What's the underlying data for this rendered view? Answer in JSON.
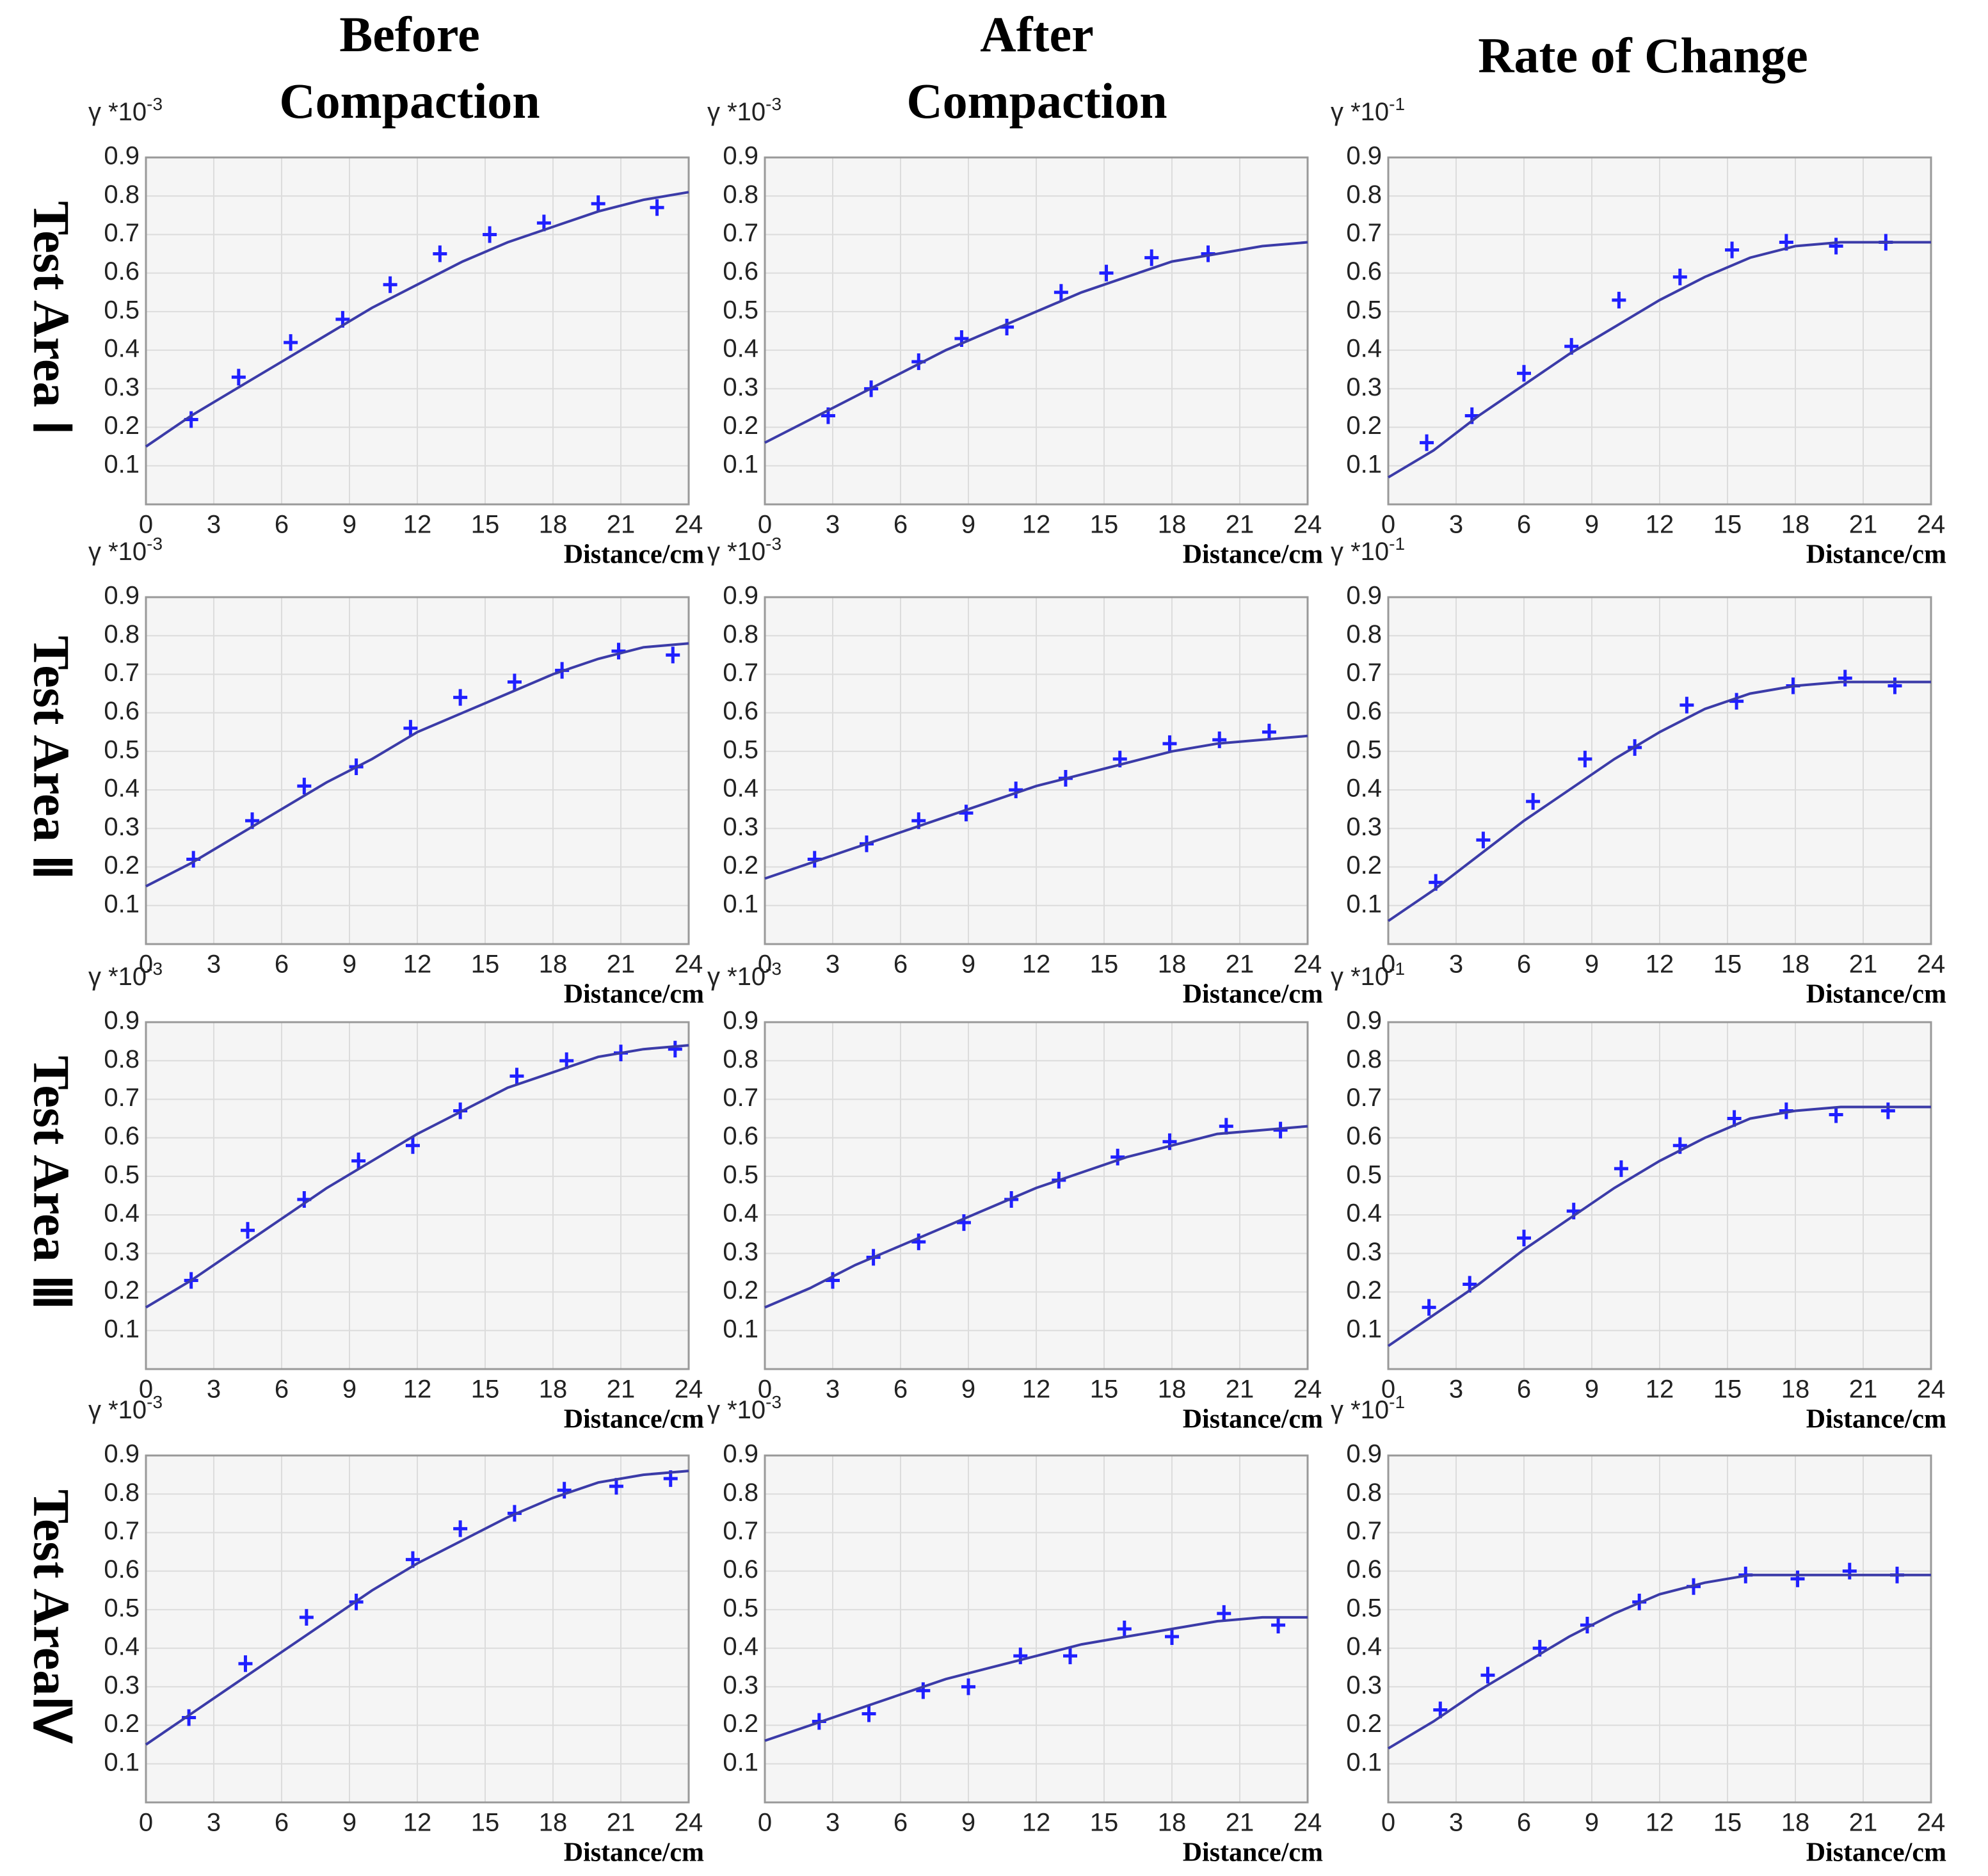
{
  "column_titles": [
    [
      "Before",
      "Compaction"
    ],
    [
      "After",
      "Compaction"
    ],
    [
      "Rate of Change"
    ]
  ],
  "row_labels": [
    "Test Area Ⅰ",
    "Test Area Ⅱ",
    "Test Area Ⅲ",
    "Test AreaⅣ"
  ],
  "chart_data": [
    {
      "type": "scatter",
      "ylabel": "γ *10",
      "ylabel_exponent": "-3",
      "xlabel": "Distance/cm",
      "xlim": [
        0,
        24
      ],
      "ylim": [
        0,
        0.9
      ],
      "xticks": [
        0,
        3,
        6,
        9,
        12,
        15,
        18,
        21,
        24
      ],
      "yticks": [
        0.1,
        0.2,
        0.3,
        0.4,
        0.5,
        0.6,
        0.7,
        0.8,
        0.9
      ],
      "grid": true,
      "series": [
        {
          "type": "scatter",
          "color": "#1f1fff",
          "x": [
            2,
            4.1,
            6.4,
            8.7,
            10.8,
            13,
            15.2,
            17.6,
            20,
            22.6
          ],
          "values": [
            0.22,
            0.33,
            0.42,
            0.48,
            0.57,
            0.65,
            0.7,
            0.73,
            0.78,
            0.77
          ]
        },
        {
          "type": "line",
          "color": "#3b3ba8",
          "x": [
            0,
            2,
            4,
            6,
            8,
            10,
            12,
            14,
            16,
            18,
            20,
            22,
            24
          ],
          "values": [
            0.15,
            0.23,
            0.3,
            0.37,
            0.44,
            0.51,
            0.57,
            0.63,
            0.68,
            0.72,
            0.76,
            0.79,
            0.81
          ]
        }
      ]
    },
    {
      "type": "scatter",
      "ylabel": "γ *10",
      "ylabel_exponent": "-3",
      "xlabel": "Distance/cm",
      "xlim": [
        0,
        24
      ],
      "ylim": [
        0,
        0.9
      ],
      "xticks": [
        0,
        3,
        6,
        9,
        12,
        15,
        18,
        21,
        24
      ],
      "yticks": [
        0.1,
        0.2,
        0.3,
        0.4,
        0.5,
        0.6,
        0.7,
        0.8,
        0.9
      ],
      "grid": true,
      "series": [
        {
          "type": "scatter",
          "color": "#1f1fff",
          "x": [
            2.8,
            4.7,
            6.8,
            8.7,
            10.7,
            13.1,
            15.1,
            17.1,
            19.6
          ],
          "values": [
            0.23,
            0.3,
            0.37,
            0.43,
            0.46,
            0.55,
            0.6,
            0.64,
            0.65
          ]
        },
        {
          "type": "line",
          "color": "#3b3ba8",
          "x": [
            0,
            2,
            4,
            6,
            8,
            10,
            12,
            14,
            16,
            18,
            20,
            22,
            24
          ],
          "values": [
            0.16,
            0.22,
            0.28,
            0.34,
            0.4,
            0.45,
            0.5,
            0.55,
            0.59,
            0.63,
            0.65,
            0.67,
            0.68
          ]
        }
      ]
    },
    {
      "type": "scatter",
      "ylabel": "γ *10",
      "ylabel_exponent": "-1",
      "xlabel": "Distance/cm",
      "xlim": [
        0,
        24
      ],
      "ylim": [
        0,
        0.9
      ],
      "xticks": [
        0,
        3,
        6,
        9,
        12,
        15,
        18,
        21,
        24
      ],
      "yticks": [
        0.1,
        0.2,
        0.3,
        0.4,
        0.5,
        0.6,
        0.7,
        0.8,
        0.9
      ],
      "grid": true,
      "series": [
        {
          "type": "scatter",
          "color": "#1f1fff",
          "x": [
            1.7,
            3.7,
            6,
            8.1,
            10.2,
            12.9,
            15.2,
            17.6,
            19.8,
            22
          ],
          "values": [
            0.16,
            0.23,
            0.34,
            0.41,
            0.53,
            0.59,
            0.66,
            0.68,
            0.67,
            0.68
          ]
        },
        {
          "type": "line",
          "color": "#3b3ba8",
          "x": [
            0,
            2,
            4,
            6,
            8,
            10,
            12,
            14,
            16,
            18,
            20,
            22,
            24
          ],
          "values": [
            0.07,
            0.14,
            0.23,
            0.31,
            0.39,
            0.46,
            0.53,
            0.59,
            0.64,
            0.67,
            0.68,
            0.68,
            0.68
          ]
        }
      ]
    },
    {
      "type": "scatter",
      "ylabel": "γ *10",
      "ylabel_exponent": "-3",
      "xlabel": "Distance/cm",
      "xlim": [
        0,
        24
      ],
      "ylim": [
        0,
        0.9
      ],
      "xticks": [
        0,
        3,
        6,
        9,
        12,
        15,
        18,
        21,
        24
      ],
      "yticks": [
        0.1,
        0.2,
        0.3,
        0.4,
        0.5,
        0.6,
        0.7,
        0.8,
        0.9
      ],
      "grid": true,
      "series": [
        {
          "type": "scatter",
          "color": "#1f1fff",
          "x": [
            2.1,
            4.7,
            7,
            9.3,
            11.7,
            13.9,
            16.3,
            18.4,
            20.9,
            23.3
          ],
          "values": [
            0.22,
            0.32,
            0.41,
            0.46,
            0.56,
            0.64,
            0.68,
            0.71,
            0.76,
            0.75
          ]
        },
        {
          "type": "line",
          "color": "#3b3ba8",
          "x": [
            0,
            2,
            4,
            6,
            8,
            10,
            12,
            14,
            16,
            18,
            20,
            22,
            24
          ],
          "values": [
            0.15,
            0.21,
            0.28,
            0.35,
            0.42,
            0.48,
            0.55,
            0.6,
            0.65,
            0.7,
            0.74,
            0.77,
            0.78
          ]
        }
      ]
    },
    {
      "type": "scatter",
      "ylabel": "γ *10",
      "ylabel_exponent": "-3",
      "xlabel": "Distance/cm",
      "xlim": [
        0,
        24
      ],
      "ylim": [
        0,
        0.9
      ],
      "xticks": [
        0,
        3,
        6,
        9,
        12,
        15,
        18,
        21,
        24
      ],
      "yticks": [
        0.1,
        0.2,
        0.3,
        0.4,
        0.5,
        0.6,
        0.7,
        0.8,
        0.9
      ],
      "grid": true,
      "series": [
        {
          "type": "scatter",
          "color": "#1f1fff",
          "x": [
            2.2,
            4.5,
            6.8,
            8.9,
            11.1,
            13.3,
            15.7,
            17.9,
            20.1,
            22.3
          ],
          "values": [
            0.22,
            0.26,
            0.32,
            0.34,
            0.4,
            0.43,
            0.48,
            0.52,
            0.53,
            0.55
          ]
        },
        {
          "type": "line",
          "color": "#3b3ba8",
          "x": [
            0,
            2,
            4,
            6,
            8,
            10,
            12,
            14,
            16,
            18,
            20,
            22,
            24
          ],
          "values": [
            0.17,
            0.21,
            0.25,
            0.29,
            0.33,
            0.37,
            0.41,
            0.44,
            0.47,
            0.5,
            0.52,
            0.53,
            0.54
          ]
        }
      ]
    },
    {
      "type": "scatter",
      "ylabel": "γ *10",
      "ylabel_exponent": "-1",
      "xlabel": "Distance/cm",
      "xlim": [
        0,
        24
      ],
      "ylim": [
        0,
        0.9
      ],
      "xticks": [
        0,
        3,
        6,
        9,
        12,
        15,
        18,
        21,
        24
      ],
      "yticks": [
        0.1,
        0.2,
        0.3,
        0.4,
        0.5,
        0.6,
        0.7,
        0.8,
        0.9
      ],
      "grid": true,
      "series": [
        {
          "type": "scatter",
          "color": "#1f1fff",
          "x": [
            2.1,
            4.2,
            6.4,
            8.7,
            10.9,
            13.2,
            15.4,
            17.9,
            20.2,
            22.4
          ],
          "values": [
            0.16,
            0.27,
            0.37,
            0.48,
            0.51,
            0.62,
            0.63,
            0.67,
            0.69,
            0.67
          ]
        },
        {
          "type": "line",
          "color": "#3b3ba8",
          "x": [
            0,
            2,
            4,
            6,
            8,
            10,
            12,
            14,
            16,
            18,
            20,
            22,
            24
          ],
          "values": [
            0.06,
            0.14,
            0.23,
            0.32,
            0.4,
            0.48,
            0.55,
            0.61,
            0.65,
            0.67,
            0.68,
            0.68,
            0.68
          ]
        }
      ]
    },
    {
      "type": "scatter",
      "ylabel": "γ *10",
      "ylabel_exponent": "-3",
      "xlabel": "Distance/cm",
      "xlim": [
        0,
        24
      ],
      "ylim": [
        0,
        0.9
      ],
      "xticks": [
        0,
        3,
        6,
        9,
        12,
        15,
        18,
        21,
        24
      ],
      "yticks": [
        0.1,
        0.2,
        0.3,
        0.4,
        0.5,
        0.6,
        0.7,
        0.8,
        0.9
      ],
      "grid": true,
      "series": [
        {
          "type": "scatter",
          "color": "#1f1fff",
          "x": [
            2,
            4.5,
            7,
            9.4,
            11.8,
            13.9,
            16.4,
            18.6,
            21,
            23.4
          ],
          "values": [
            0.23,
            0.36,
            0.44,
            0.54,
            0.58,
            0.67,
            0.76,
            0.8,
            0.82,
            0.83
          ]
        },
        {
          "type": "line",
          "color": "#3b3ba8",
          "x": [
            0,
            2,
            4,
            6,
            8,
            10,
            12,
            14,
            16,
            18,
            20,
            22,
            24
          ],
          "values": [
            0.16,
            0.23,
            0.31,
            0.39,
            0.47,
            0.54,
            0.61,
            0.67,
            0.73,
            0.77,
            0.81,
            0.83,
            0.84
          ]
        }
      ]
    },
    {
      "type": "scatter",
      "ylabel": "γ *10",
      "ylabel_exponent": "-3",
      "xlabel": "Distance/cm",
      "xlim": [
        0,
        24
      ],
      "ylim": [
        0,
        0.9
      ],
      "xticks": [
        0,
        3,
        6,
        9,
        12,
        15,
        18,
        21,
        24
      ],
      "yticks": [
        0.1,
        0.2,
        0.3,
        0.4,
        0.5,
        0.6,
        0.7,
        0.8,
        0.9
      ],
      "grid": true,
      "series": [
        {
          "type": "scatter",
          "color": "#1f1fff",
          "x": [
            3,
            4.8,
            6.8,
            8.8,
            10.9,
            13,
            15.6,
            17.9,
            20.4,
            22.8
          ],
          "values": [
            0.23,
            0.29,
            0.33,
            0.38,
            0.44,
            0.49,
            0.55,
            0.59,
            0.63,
            0.62
          ]
        },
        {
          "type": "line",
          "color": "#3b3ba8",
          "x": [
            0,
            2,
            4,
            6,
            8,
            10,
            12,
            14,
            16,
            18,
            20,
            22,
            24
          ],
          "values": [
            0.16,
            0.21,
            0.27,
            0.32,
            0.37,
            0.42,
            0.47,
            0.51,
            0.55,
            0.58,
            0.61,
            0.62,
            0.63
          ]
        }
      ]
    },
    {
      "type": "scatter",
      "ylabel": "γ *10",
      "ylabel_exponent": "-1",
      "xlabel": "Distance/cm",
      "xlim": [
        0,
        24
      ],
      "ylim": [
        0,
        0.9
      ],
      "xticks": [
        0,
        3,
        6,
        9,
        12,
        15,
        18,
        21,
        24
      ],
      "yticks": [
        0.1,
        0.2,
        0.3,
        0.4,
        0.5,
        0.6,
        0.7,
        0.8,
        0.9
      ],
      "grid": true,
      "series": [
        {
          "type": "scatter",
          "color": "#1f1fff",
          "x": [
            1.8,
            3.6,
            6,
            8.2,
            10.3,
            12.9,
            15.3,
            17.6,
            19.8,
            22.1
          ],
          "values": [
            0.16,
            0.22,
            0.34,
            0.41,
            0.52,
            0.58,
            0.65,
            0.67,
            0.66,
            0.67
          ]
        },
        {
          "type": "line",
          "color": "#3b3ba8",
          "x": [
            0,
            2,
            4,
            6,
            8,
            10,
            12,
            14,
            16,
            18,
            20,
            22,
            24
          ],
          "values": [
            0.06,
            0.14,
            0.22,
            0.31,
            0.39,
            0.47,
            0.54,
            0.6,
            0.65,
            0.67,
            0.68,
            0.68,
            0.68
          ]
        }
      ]
    },
    {
      "type": "scatter",
      "ylabel": "γ *10",
      "ylabel_exponent": "-3",
      "xlabel": "Distance/cm",
      "xlim": [
        0,
        24
      ],
      "ylim": [
        0,
        0.9
      ],
      "xticks": [
        0,
        3,
        6,
        9,
        12,
        15,
        18,
        21,
        24
      ],
      "yticks": [
        0.1,
        0.2,
        0.3,
        0.4,
        0.5,
        0.6,
        0.7,
        0.8,
        0.9
      ],
      "grid": true,
      "series": [
        {
          "type": "scatter",
          "color": "#1f1fff",
          "x": [
            1.9,
            4.4,
            7.1,
            9.3,
            11.8,
            13.9,
            16.3,
            18.5,
            20.8,
            23.2
          ],
          "values": [
            0.22,
            0.36,
            0.48,
            0.52,
            0.63,
            0.71,
            0.75,
            0.81,
            0.82,
            0.84
          ]
        },
        {
          "type": "line",
          "color": "#3b3ba8",
          "x": [
            0,
            2,
            4,
            6,
            8,
            10,
            12,
            14,
            16,
            18,
            20,
            22,
            24
          ],
          "values": [
            0.15,
            0.23,
            0.31,
            0.39,
            0.47,
            0.55,
            0.62,
            0.68,
            0.74,
            0.79,
            0.83,
            0.85,
            0.86
          ]
        }
      ]
    },
    {
      "type": "scatter",
      "ylabel": "γ *10",
      "ylabel_exponent": "-3",
      "xlabel": "Distance/cm",
      "xlim": [
        0,
        24
      ],
      "ylim": [
        0,
        0.9
      ],
      "xticks": [
        0,
        3,
        6,
        9,
        12,
        15,
        18,
        21,
        24
      ],
      "yticks": [
        0.1,
        0.2,
        0.3,
        0.4,
        0.5,
        0.6,
        0.7,
        0.8,
        0.9
      ],
      "grid": true,
      "series": [
        {
          "type": "scatter",
          "color": "#1f1fff",
          "x": [
            2.4,
            4.6,
            7,
            9,
            11.3,
            13.5,
            15.9,
            18,
            20.3,
            22.7
          ],
          "values": [
            0.21,
            0.23,
            0.29,
            0.3,
            0.38,
            0.38,
            0.45,
            0.43,
            0.49,
            0.46
          ]
        },
        {
          "type": "line",
          "color": "#3b3ba8",
          "x": [
            0,
            2,
            4,
            6,
            8,
            10,
            12,
            14,
            16,
            18,
            20,
            22,
            24
          ],
          "values": [
            0.16,
            0.2,
            0.24,
            0.28,
            0.32,
            0.35,
            0.38,
            0.41,
            0.43,
            0.45,
            0.47,
            0.48,
            0.48
          ]
        }
      ]
    },
    {
      "type": "scatter",
      "ylabel": "γ *10",
      "ylabel_exponent": "-1",
      "xlabel": "Distance/cm",
      "xlim": [
        0,
        24
      ],
      "ylim": [
        0,
        0.9
      ],
      "xticks": [
        0,
        3,
        6,
        9,
        12,
        15,
        18,
        21,
        24
      ],
      "yticks": [
        0.1,
        0.2,
        0.3,
        0.4,
        0.5,
        0.6,
        0.7,
        0.8,
        0.9
      ],
      "grid": true,
      "series": [
        {
          "type": "scatter",
          "color": "#1f1fff",
          "x": [
            2.3,
            4.4,
            6.7,
            8.8,
            11.1,
            13.5,
            15.8,
            18.1,
            20.4,
            22.5
          ],
          "values": [
            0.24,
            0.33,
            0.4,
            0.46,
            0.52,
            0.56,
            0.59,
            0.58,
            0.6,
            0.59
          ]
        },
        {
          "type": "line",
          "color": "#3b3ba8",
          "x": [
            0,
            2,
            4,
            6,
            8,
            10,
            12,
            14,
            16,
            18,
            20,
            22,
            24
          ],
          "values": [
            0.14,
            0.21,
            0.29,
            0.36,
            0.43,
            0.49,
            0.54,
            0.57,
            0.59,
            0.59,
            0.59,
            0.59,
            0.59
          ]
        }
      ]
    }
  ]
}
